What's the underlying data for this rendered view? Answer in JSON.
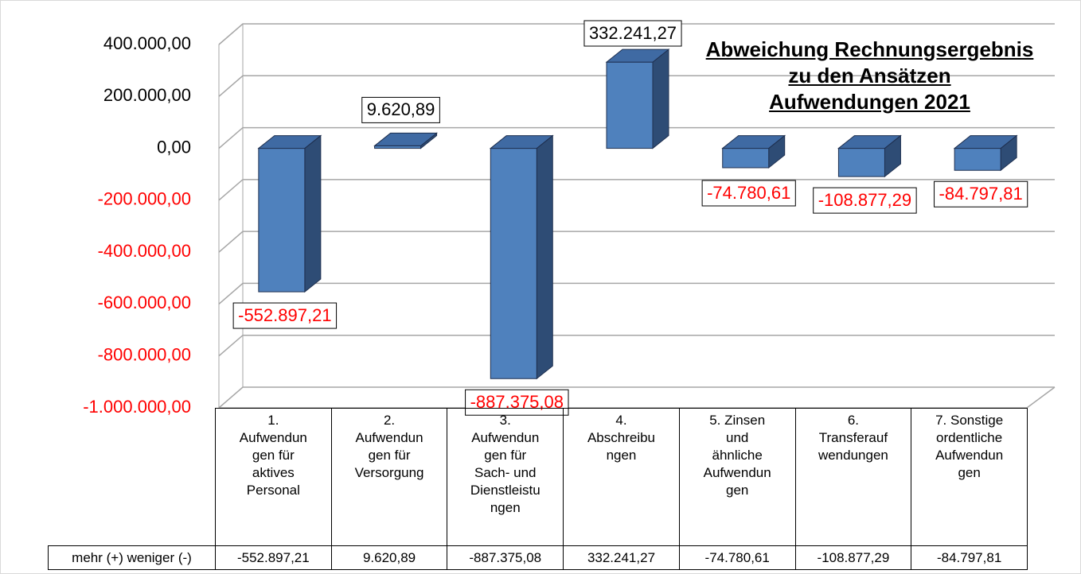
{
  "chart_data": {
    "type": "bar3d",
    "title": [
      "Abweichung Rechnungsergebnis",
      "zu den Ansätzen",
      "Aufwendungen 2021"
    ],
    "categories": [
      "1. Aufwendungen für aktives Personal",
      "2. Aufwendungen für Versorgung",
      "3. Aufwendungen für Sach- und Dienstleistungen",
      "4. Abschreibungen",
      "5. Zinsen und ähnliche Aufwendungen",
      "6. Transferaufwendungen",
      "7. Sonstige ordentliche Aufwendungen"
    ],
    "series": [
      {
        "name": "mehr (+) weniger (-)",
        "color": "#4f81bd",
        "values": [
          -552897.21,
          9620.89,
          -887375.08,
          332241.27,
          -74780.61,
          -108877.29,
          -84797.81
        ],
        "value_labels": [
          "-552.897,21",
          "9.620,89",
          "-887.375,08",
          "332.241,27",
          "-74.780,61",
          "-108.877,29",
          "-84.797,81"
        ]
      }
    ],
    "ylim": [
      -1000000,
      400000
    ],
    "yticks": [
      {
        "value": 400000,
        "label": "400.000,00"
      },
      {
        "value": 200000,
        "label": "200.000,00"
      },
      {
        "value": 0,
        "label": "0,00"
      },
      {
        "value": -200000,
        "label": "-200.000,00"
      },
      {
        "value": -400000,
        "label": "-400.000,00"
      },
      {
        "value": -600000,
        "label": "-600.000,00"
      },
      {
        "value": -800000,
        "label": "-800.000,00"
      },
      {
        "value": -1000000,
        "label": "-1.000.000,00"
      }
    ],
    "grid": true,
    "negative_label_color": "#ff0000"
  }
}
